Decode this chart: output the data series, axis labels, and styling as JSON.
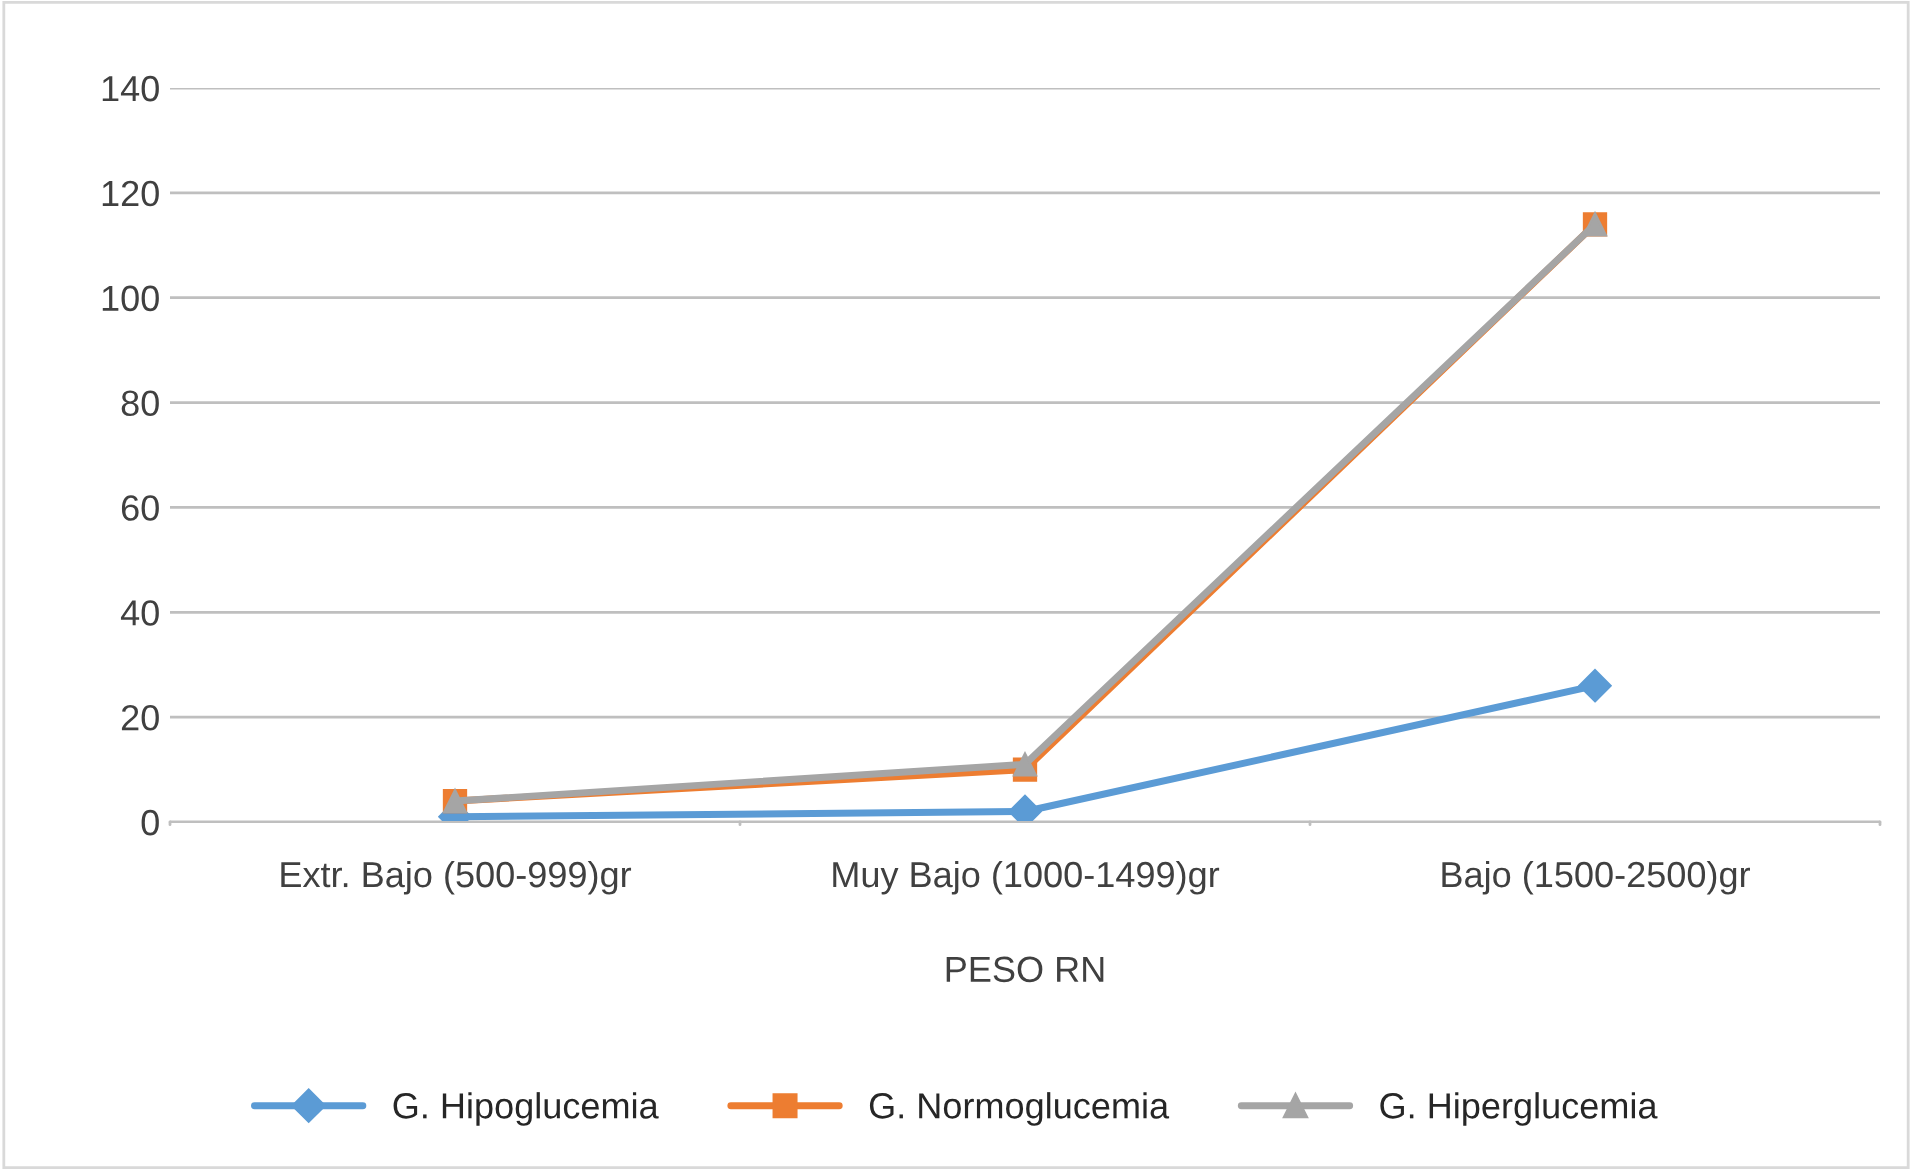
{
  "chart_data": {
    "type": "line",
    "xlabel": "PESO RN",
    "categories": [
      "Extr. Bajo (500-999)gr",
      "Muy Bajo (1000-1499)gr",
      "Bajo (1500-2500)gr"
    ],
    "series": [
      {
        "name": "G. Hipoglucemia",
        "color": "#5b9bd5",
        "marker": "diamond",
        "values": [
          1,
          2,
          26
        ]
      },
      {
        "name": "G. Normoglucemia",
        "color": "#ed7d31",
        "marker": "square",
        "values": [
          4,
          10,
          114
        ]
      },
      {
        "name": "G. Hiperglucemia",
        "color": "#a5a5a5",
        "marker": "triangle",
        "values": [
          4,
          11,
          114
        ]
      }
    ],
    "ylim": [
      0,
      140
    ],
    "yticks": [
      0,
      20,
      40,
      60,
      80,
      100,
      120,
      140
    ],
    "grid": "y",
    "legend": "bottom"
  }
}
